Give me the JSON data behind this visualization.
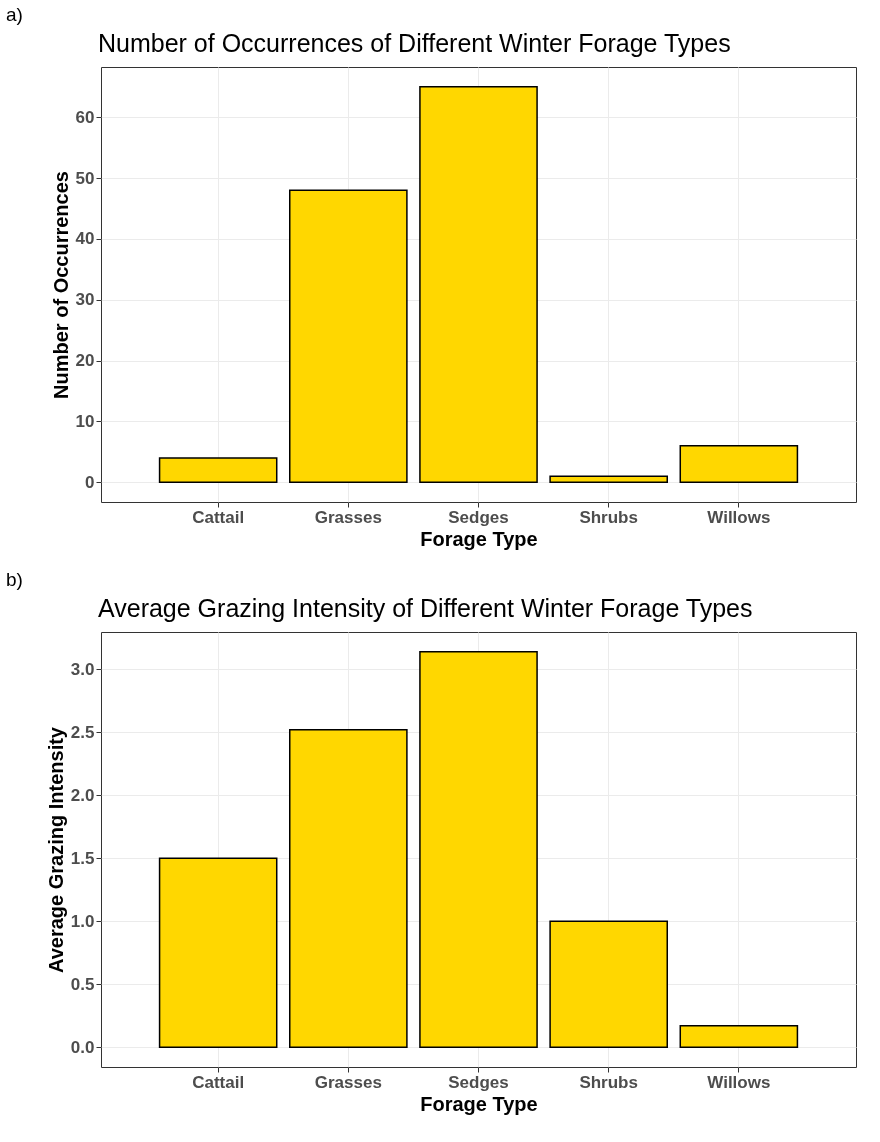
{
  "chart_data": [
    {
      "type": "bar",
      "title": "Number of Occurrences of Different Winter Forage Types",
      "xlabel": "Forage Type",
      "ylabel": "Number of Occurrences",
      "annotations": [
        "a)"
      ],
      "categories": [
        "Cattail",
        "Grasses",
        "Sedges",
        "Shrubs",
        "Willows"
      ],
      "values": [
        4,
        48,
        65,
        1,
        6
      ],
      "color": "#ffd700",
      "ylim": [
        -3.25,
        68.25
      ],
      "yticks": [
        0,
        10,
        20,
        30,
        40,
        50,
        60
      ],
      "grid": true
    },
    {
      "type": "bar",
      "title": "Average Grazing Intensity of Different Winter Forage Types",
      "xlabel": "Forage Type",
      "ylabel": "Average Grazing Intensity",
      "annotations": [
        "b)"
      ],
      "categories": [
        "Cattail",
        "Grasses",
        "Sedges",
        "Shrubs",
        "Willows"
      ],
      "values": [
        1.5,
        2.52,
        3.14,
        1.0,
        0.17
      ],
      "color": "#ffd700",
      "ylim": [
        -0.157,
        3.297
      ],
      "yticks": [
        {
          "value": 0,
          "label": "0.0"
        },
        {
          "value": 0.5,
          "label": "0.5"
        },
        {
          "value": 1,
          "label": "1.0"
        },
        {
          "value": 1.5,
          "label": "1.5"
        },
        {
          "value": 2,
          "label": "2.0"
        },
        {
          "value": 2.5,
          "label": "2.5"
        },
        {
          "value": 3,
          "label": "3.0"
        }
      ],
      "grid": true
    }
  ]
}
